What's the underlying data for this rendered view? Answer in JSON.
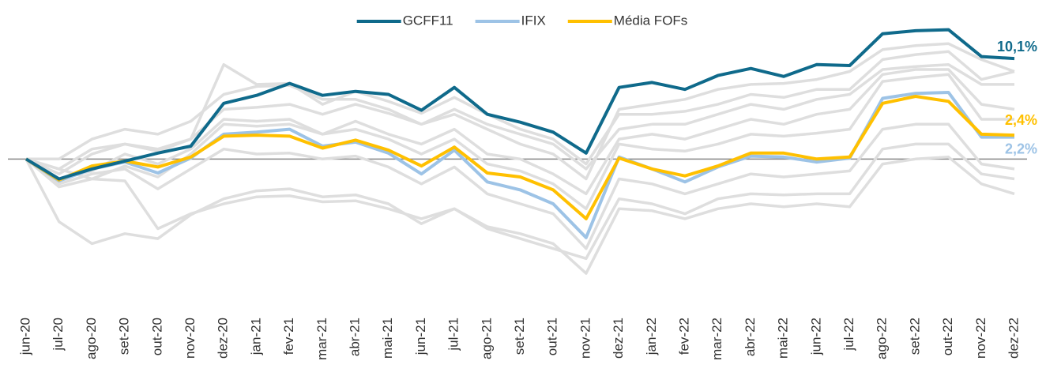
{
  "chart_data": {
    "type": "line",
    "categories": [
      "jun-20",
      "jul-20",
      "ago-20",
      "set-20",
      "out-20",
      "nov-20",
      "dez-20",
      "jan-21",
      "fev-21",
      "mar-21",
      "abr-21",
      "mai-21",
      "jun-21",
      "jul-21",
      "ago-21",
      "set-21",
      "out-21",
      "nov-21",
      "dez-21",
      "jan-22",
      "fev-22",
      "mar-22",
      "abr-22",
      "mai-22",
      "jun-22",
      "jul-22",
      "ago-22",
      "set-22",
      "out-22",
      "nov-22",
      "dez-22"
    ],
    "ylim": [
      -12.6,
      14.4
    ],
    "reference_line": 0,
    "series": [
      {
        "name": "GCFF11",
        "color": "#0f6a8b",
        "values": [
          0,
          -2.0,
          -1.0,
          -0.2,
          0.6,
          1.3,
          5.6,
          6.4,
          7.6,
          6.4,
          6.8,
          6.5,
          4.9,
          7.2,
          4.5,
          3.7,
          2.7,
          0.6,
          7.2,
          7.7,
          7.0,
          8.4,
          9.1,
          8.3,
          9.5,
          9.4,
          12.6,
          12.9,
          13.0,
          10.3,
          10.1
        ],
        "value_labels": [
          null,
          null,
          null,
          null,
          null,
          null,
          null,
          null,
          null,
          null,
          null,
          null,
          null,
          null,
          null,
          null,
          null,
          null,
          null,
          null,
          null,
          null,
          null,
          null,
          null,
          null,
          null,
          null,
          null,
          null,
          "10,1%"
        ]
      },
      {
        "name": "IFIX",
        "color": "#9dc3e6",
        "values": [
          0,
          -2.2,
          -1.0,
          -0.3,
          -1.4,
          0.1,
          2.5,
          2.7,
          3.0,
          1.3,
          1.7,
          0.6,
          -1.5,
          0.9,
          -2.3,
          -3.1,
          -4.5,
          -7.9,
          0.2,
          -1.0,
          -2.3,
          -0.8,
          0.3,
          0.2,
          -0.3,
          0.1,
          6.1,
          6.6,
          6.7,
          2.2,
          2.2
        ],
        "value_labels": [
          null,
          null,
          null,
          null,
          null,
          null,
          null,
          null,
          null,
          null,
          null,
          null,
          null,
          null,
          null,
          null,
          null,
          null,
          null,
          null,
          null,
          null,
          null,
          null,
          null,
          null,
          null,
          null,
          null,
          null,
          "2,2%"
        ]
      },
      {
        "name": "Média FOFs",
        "color": "#ffc000",
        "values": [
          0,
          -2.1,
          -0.7,
          -0.2,
          -0.8,
          0.2,
          2.3,
          2.4,
          2.3,
          1.1,
          1.9,
          0.9,
          -0.7,
          1.2,
          -1.4,
          -1.8,
          -3.1,
          -6.0,
          0.1,
          -1.0,
          -1.7,
          -0.7,
          0.6,
          0.6,
          0,
          0.2,
          5.6,
          6.3,
          5.8,
          2.5,
          2.4
        ],
        "value_labels": [
          null,
          null,
          null,
          null,
          null,
          null,
          null,
          null,
          null,
          null,
          null,
          null,
          null,
          null,
          null,
          null,
          null,
          null,
          null,
          null,
          null,
          null,
          null,
          null,
          null,
          null,
          null,
          null,
          null,
          null,
          "2,4%"
        ]
      },
      {
        "color": "#dedede",
        "values": [
          0,
          -1,
          1,
          1.5,
          1,
          2,
          9.5,
          7.5,
          7.6,
          5.5,
          6.8,
          5.8,
          4.6,
          6.2,
          4.5,
          3,
          2,
          -0.5,
          4.5,
          4.5,
          4.8,
          5.5,
          6.5,
          6.2,
          7,
          7,
          10,
          10.5,
          10.8,
          8,
          8.8
        ]
      },
      {
        "color": "#dedede",
        "values": [
          0,
          -1.5,
          0.5,
          1.5,
          0.8,
          2,
          5,
          5.2,
          5.5,
          4.5,
          5.5,
          4.6,
          3.5,
          5,
          3.5,
          2.5,
          1.5,
          -1,
          3,
          3.5,
          3.5,
          4.5,
          5.5,
          5,
          6,
          6.5,
          9,
          9.3,
          9.5,
          7.5,
          7.5
        ]
      },
      {
        "color": "#dedede",
        "values": [
          0,
          -6.3,
          -8.5,
          -7.5,
          -8,
          -5.6,
          -4,
          -3.2,
          -3,
          -3.8,
          -3.6,
          -4.5,
          -6.5,
          -5,
          -6.8,
          -7.5,
          -8.5,
          -11.5,
          -5,
          -5.2,
          -6,
          -5,
          -4.5,
          -4.8,
          -4.5,
          -4.8,
          -0.5,
          0,
          0.2,
          -2.5,
          -3.5
        ]
      },
      {
        "color": "#dedede",
        "values": [
          0,
          -1,
          -2,
          -2.2,
          -7,
          -5.5,
          -4.5,
          -3.8,
          -3.7,
          -4.3,
          -4.2,
          -5,
          -6,
          -5,
          -7,
          -8,
          -9,
          -10,
          -4,
          -4.5,
          -5.5,
          -4,
          -3.5,
          -3.6,
          -3.5,
          -3.5,
          1,
          1.5,
          1.5,
          -1.5,
          -2
        ]
      },
      {
        "color": "#dedede",
        "values": [
          0,
          -2.8,
          -2,
          -0.7,
          -1.8,
          0.5,
          3.5,
          3.3,
          3.5,
          2.5,
          3,
          2,
          0.5,
          2,
          -0.5,
          -1.2,
          -2.5,
          -5,
          1.5,
          1,
          0.8,
          1.5,
          2.5,
          2.3,
          2.6,
          3,
          7.8,
          8.2,
          8.5,
          4,
          4
        ]
      },
      {
        "color": "#dedede",
        "values": [
          0,
          -2.5,
          -1.5,
          -1,
          -3,
          -1,
          1,
          0.5,
          0.6,
          0,
          0.3,
          -0.8,
          -2.5,
          -0.8,
          -3.5,
          -4.5,
          -5.5,
          -9,
          -2,
          -2.5,
          -3.5,
          -2.5,
          -1.5,
          -1.8,
          -1.5,
          -1.2,
          3,
          3.5,
          3.5,
          -0.5,
          -1
        ]
      },
      {
        "color": "#dedede",
        "values": [
          0,
          0,
          2,
          3,
          2.5,
          3.8,
          6.5,
          7.3,
          7.4,
          6,
          6,
          5,
          3.5,
          4.5,
          3,
          1.5,
          0.5,
          -2,
          5,
          5.5,
          6,
          7,
          7.5,
          7.6,
          8,
          8.8,
          11,
          11.4,
          11.6,
          10,
          8.8
        ]
      },
      {
        "color": "#dedede",
        "values": [
          0,
          -2,
          -1.2,
          0.5,
          -0.5,
          1,
          4,
          3.8,
          4,
          2.5,
          3.8,
          2.5,
          1.5,
          3,
          0.5,
          0,
          -1.5,
          -3.5,
          2,
          2.5,
          2,
          3,
          4,
          3.5,
          4.5,
          5,
          8.5,
          9,
          9,
          5.5,
          5
        ]
      }
    ]
  }
}
